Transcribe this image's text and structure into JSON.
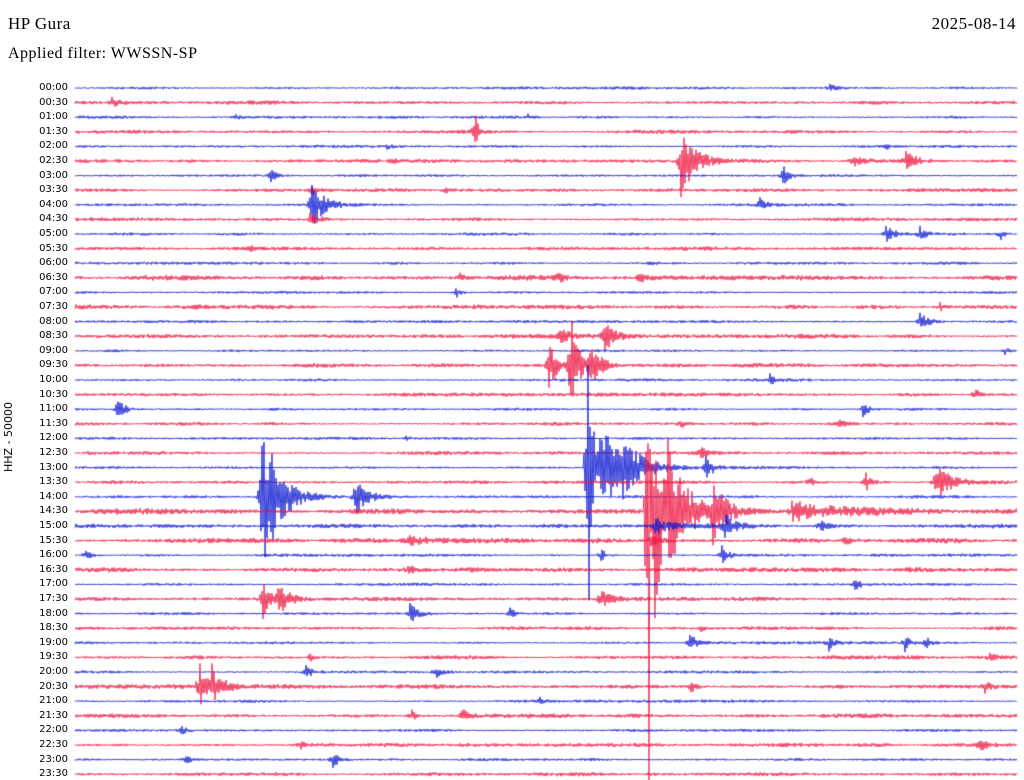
{
  "header": {
    "station": "HP Gura",
    "date": "2025-08-14",
    "filter": "Applied filter: WWSSN-SP"
  },
  "axis": {
    "scale_label": "HHZ - 50000"
  },
  "chart_data": {
    "type": "line",
    "subtype": "helicorder-seismogram",
    "title": "HP Gura",
    "date": "2025-08-14",
    "filter": "WWSSN-SP",
    "channel_scale": "HHZ - 50000",
    "rows": 48,
    "minutes_per_row": 30,
    "start_time": "00:00",
    "row_labels": [
      "00:00",
      "00:30",
      "01:00",
      "01:30",
      "02:00",
      "02:30",
      "03:00",
      "03:30",
      "04:00",
      "04:30",
      "05:00",
      "05:30",
      "06:00",
      "06:30",
      "07:00",
      "07:30",
      "08:00",
      "08:30",
      "09:00",
      "09:30",
      "10:00",
      "10:30",
      "11:00",
      "11:30",
      "12:00",
      "12:30",
      "13:00",
      "13:30",
      "14:00",
      "14:30",
      "15:00",
      "15:30",
      "16:00",
      "16:30",
      "17:00",
      "17:30",
      "18:00",
      "18:30",
      "19:00",
      "19:30",
      "20:00",
      "20:30",
      "21:00",
      "21:30",
      "22:00",
      "22:30",
      "23:00",
      "23:30"
    ],
    "colors": {
      "even_rows": "#0b16d0",
      "odd_rows": "#ed1540",
      "background": "#ffffff",
      "text": "#000000"
    },
    "noise_base": {
      "even": 1.0,
      "odd": 1.3
    },
    "row_noise": {
      "13": 1.8,
      "15": 1.6,
      "17": 1.5,
      "19": 1.5,
      "29": 2.0,
      "30": 1.5,
      "31": 1.7,
      "33": 1.7,
      "35": 1.5,
      "41": 1.5,
      "43": 1.5,
      "45": 1.4
    },
    "events_format": [
      "row_index",
      "x_fraction_of_row",
      "amplitude_px",
      "decay_fraction_of_row"
    ],
    "events": [
      [
        0,
        0.8,
        4,
        0.006
      ],
      [
        1,
        0.039,
        5,
        0.008
      ],
      [
        2,
        0.17,
        3,
        0.004
      ],
      [
        2,
        0.48,
        2.5,
        0.004
      ],
      [
        3,
        0.424,
        20,
        0.0035
      ],
      [
        4,
        0.33,
        3,
        0.004
      ],
      [
        4,
        0.86,
        3,
        0.004
      ],
      [
        5,
        0.642,
        38,
        0.014
      ],
      [
        5,
        0.824,
        8,
        0.01
      ],
      [
        5,
        0.881,
        13,
        0.008
      ],
      [
        5,
        0.334,
        4,
        0.006
      ],
      [
        6,
        0.207,
        9,
        0.006
      ],
      [
        6,
        0.75,
        11,
        0.006
      ],
      [
        7,
        0.392,
        4,
        0.005
      ],
      [
        7,
        0.25,
        5,
        0.008
      ],
      [
        8,
        0.251,
        26,
        0.013
      ],
      [
        8,
        0.726,
        9,
        0.005
      ],
      [
        9,
        0.249,
        6,
        0.012
      ],
      [
        10,
        0.859,
        9,
        0.01
      ],
      [
        10,
        0.896,
        7,
        0.006
      ],
      [
        10,
        0.981,
        7,
        0.004
      ],
      [
        11,
        0.186,
        3,
        0.004
      ],
      [
        12,
        0.61,
        2.5,
        0.004
      ],
      [
        13,
        0.408,
        4,
        0.005
      ],
      [
        13,
        0.512,
        5,
        0.005
      ],
      [
        13,
        0.599,
        5,
        0.005
      ],
      [
        14,
        0.403,
        7,
        0.006
      ],
      [
        15,
        0.917,
        4,
        0.004
      ],
      [
        16,
        0.896,
        12,
        0.008
      ],
      [
        17,
        0.561,
        14,
        0.012
      ],
      [
        17,
        0.514,
        8,
        0.008
      ],
      [
        18,
        0.986,
        4,
        0.004
      ],
      [
        19,
        0.502,
        28,
        0.008
      ],
      [
        19,
        0.526,
        75,
        0.006
      ],
      [
        19,
        0.546,
        20,
        0.012
      ],
      [
        20,
        0.737,
        6,
        0.005
      ],
      [
        21,
        0.954,
        7,
        0.005
      ],
      [
        22,
        0.045,
        16,
        0.006
      ],
      [
        22,
        0.835,
        9,
        0.006
      ],
      [
        23,
        0.642,
        5,
        0.005
      ],
      [
        23,
        0.811,
        5,
        0.005
      ],
      [
        24,
        0.35,
        2.5,
        0.004
      ],
      [
        25,
        0.016,
        4,
        0.004
      ],
      [
        25,
        0.663,
        7,
        0.005
      ],
      [
        26,
        0.544,
        180,
        0.004
      ],
      [
        26,
        0.557,
        55,
        0.016
      ],
      [
        26,
        0.58,
        22,
        0.022
      ],
      [
        26,
        0.669,
        12,
        0.008
      ],
      [
        27,
        0.779,
        6,
        0.005
      ],
      [
        27,
        0.838,
        12,
        0.006
      ],
      [
        27,
        0.912,
        24,
        0.012
      ],
      [
        28,
        0.198,
        115,
        0.006
      ],
      [
        28,
        0.208,
        38,
        0.02
      ],
      [
        28,
        0.297,
        22,
        0.012
      ],
      [
        29,
        0.608,
        520,
        0.0012
      ],
      [
        29,
        0.614,
        120,
        0.01
      ],
      [
        29,
        0.628,
        55,
        0.022
      ],
      [
        29,
        0.676,
        28,
        0.012
      ],
      [
        29,
        0.76,
        10,
        0.06
      ],
      [
        30,
        0.615,
        8,
        0.02
      ],
      [
        30,
        0.689,
        12,
        0.01
      ],
      [
        30,
        0.79,
        6,
        0.006
      ],
      [
        31,
        0.353,
        9,
        0.01
      ],
      [
        31,
        0.61,
        6,
        0.01
      ],
      [
        31,
        0.817,
        6,
        0.005
      ],
      [
        32,
        0.011,
        7,
        0.005
      ],
      [
        32,
        0.557,
        7,
        0.006
      ],
      [
        32,
        0.686,
        9,
        0.006
      ],
      [
        33,
        0.353,
        5,
        0.006
      ],
      [
        34,
        0.827,
        7,
        0.005
      ],
      [
        35,
        0.199,
        21,
        0.006
      ],
      [
        35,
        0.215,
        17,
        0.01
      ],
      [
        35,
        0.557,
        11,
        0.01
      ],
      [
        36,
        0.355,
        11,
        0.008
      ],
      [
        36,
        0.461,
        6,
        0.005
      ],
      [
        37,
        0.663,
        4,
        0.004
      ],
      [
        38,
        0.652,
        11,
        0.006
      ],
      [
        38,
        0.799,
        9,
        0.005
      ],
      [
        38,
        0.88,
        9,
        0.005
      ],
      [
        38,
        0.901,
        8,
        0.005
      ],
      [
        39,
        0.249,
        4,
        0.004
      ],
      [
        39,
        0.97,
        4,
        0.004
      ],
      [
        40,
        0.244,
        8,
        0.006
      ],
      [
        40,
        0.382,
        8,
        0.006
      ],
      [
        41,
        0.132,
        24,
        0.006
      ],
      [
        41,
        0.145,
        19,
        0.012
      ],
      [
        41,
        0.652,
        7,
        0.005
      ],
      [
        41,
        0.965,
        6,
        0.005
      ],
      [
        42,
        0.493,
        3,
        0.004
      ],
      [
        43,
        0.357,
        6,
        0.005
      ],
      [
        43,
        0.41,
        8,
        0.006
      ],
      [
        44,
        0.111,
        7,
        0.005
      ],
      [
        45,
        0.239,
        5,
        0.005
      ],
      [
        45,
        0.96,
        8,
        0.005
      ],
      [
        46,
        0.117,
        5,
        0.005
      ],
      [
        46,
        0.273,
        10,
        0.006
      ],
      [
        47,
        0.61,
        3,
        0.004
      ]
    ]
  }
}
